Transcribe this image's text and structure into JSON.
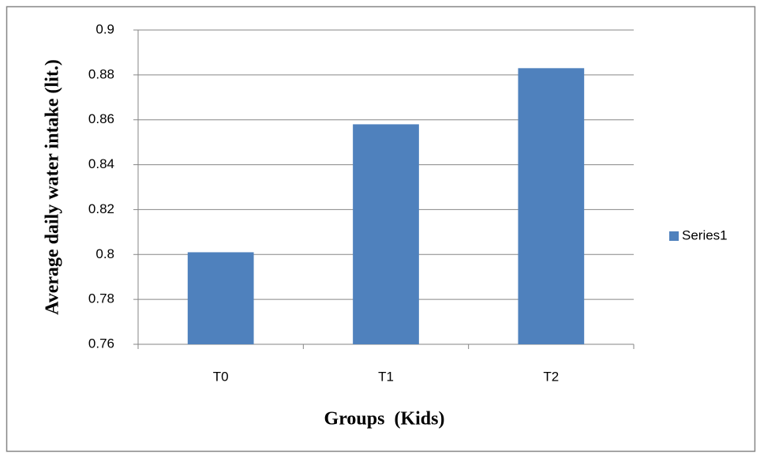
{
  "chart_data": {
    "type": "bar",
    "categories": [
      "T0",
      "T1",
      "T2"
    ],
    "series": [
      {
        "name": "Series1",
        "color": "#4f81bd",
        "values": [
          0.801,
          0.858,
          0.883
        ]
      }
    ],
    "ylim": [
      0.76,
      0.9
    ],
    "yticks": [
      0.76,
      0.78,
      0.8,
      0.82,
      0.84,
      0.86,
      0.88,
      0.9
    ],
    "grid": true,
    "legend": "right",
    "xlabel": "Groups  (Kids)",
    "ylabel": "Average daily water intake (lit.)"
  }
}
